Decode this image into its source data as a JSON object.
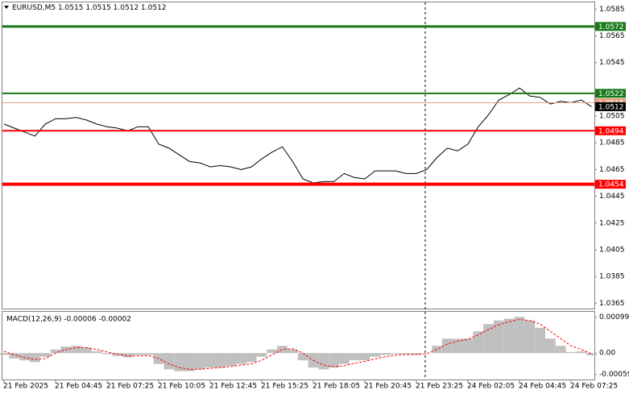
{
  "chart_data": [
    {
      "type": "line",
      "title": "EURUSD,M5  1.0515 1.0515 1.0512 1.0512",
      "color": "#000000",
      "categories": [
        "21 Feb 2025",
        null,
        null,
        null,
        null,
        "21 Feb 04:45",
        null,
        null,
        null,
        null,
        "21 Feb 07:25",
        null,
        null,
        null,
        null,
        "21 Feb 10:05",
        null,
        null,
        null,
        null,
        "21 Feb 12:45",
        null,
        null,
        null,
        null,
        "21 Feb 15:25",
        null,
        null,
        null,
        null,
        "21 Feb 18:05",
        null,
        null,
        null,
        null,
        "21 Feb 20:45",
        null,
        null,
        null,
        null,
        "21 Feb 23:25",
        null,
        null,
        null,
        null,
        "24 Feb 02:05",
        null,
        null,
        null,
        null,
        "24 Feb 04:45",
        null,
        null,
        null,
        null,
        "24 Feb 07:25",
        null,
        null
      ],
      "values": [
        1.0499,
        1.0496,
        1.0493,
        1.049,
        1.0499,
        1.0503,
        1.0503,
        1.0504,
        1.0502,
        1.0499,
        1.0497,
        1.0496,
        1.0494,
        1.0497,
        1.0497,
        1.0484,
        1.0481,
        1.0476,
        1.0471,
        1.047,
        1.0467,
        1.0468,
        1.0467,
        1.0465,
        1.0467,
        1.0473,
        1.0478,
        1.0482,
        1.0471,
        1.0458,
        1.0455,
        1.0456,
        1.0456,
        1.0462,
        1.0459,
        1.0458,
        1.0464,
        1.0464,
        1.0464,
        1.0462,
        1.0462,
        1.0465,
        1.0474,
        1.0481,
        1.0479,
        1.0484,
        1.0497,
        1.0506,
        1.0517,
        1.0521,
        1.0526,
        1.052,
        1.0519,
        1.0514,
        1.0516,
        1.0515,
        1.0517,
        1.0512
      ],
      "ylim": [
        1.0361,
        1.059
      ],
      "yticks": [
        1.0585,
        1.0565,
        1.0545,
        1.0505,
        1.0485,
        1.0465,
        1.0445,
        1.0425,
        1.0405,
        1.0385,
        1.0365
      ],
      "levels": [
        {
          "value": 1.0515,
          "color": "#e8a080",
          "line_width": 1
        },
        {
          "value": 1.0572,
          "color": "#1a7a1a",
          "line_width": 3
        },
        {
          "value": 1.0522,
          "color": "#1a7a1a",
          "line_width": 2
        },
        {
          "value": 1.0494,
          "color": "#ff0000",
          "line_width": 2
        },
        {
          "value": 1.0454,
          "color": "#ff0000",
          "line_width": 4
        }
      ]
    },
    {
      "type": "macd",
      "title": "MACD(12,26,9) -0.00006 -0.00002",
      "ylim": [
        -0.00073,
        0.00114
      ],
      "yticks": [
        0.00099,
        {
          "value": 0,
          "label": "0.00"
        },
        -0.00059
      ],
      "series": [
        {
          "type": "bar",
          "color": "#c0c0c0",
          "values": [
            -5e-05,
            -0.00015,
            -0.0002,
            -0.00025,
            -0.0001,
            0.0001,
            0.00018,
            0.0002,
            0.00015,
            5e-05,
            -3e-05,
            -8e-05,
            -0.00012,
            -5e-05,
            -5e-05,
            -0.0003,
            -0.00045,
            -0.0005,
            -0.0005,
            -0.00045,
            -0.0004,
            -0.0004,
            -0.00035,
            -0.0003,
            -0.00025,
            -0.0001,
            0.0001,
            0.0002,
            0.0001,
            -0.0002,
            -0.0004,
            -0.00045,
            -0.0004,
            -0.0003,
            -0.0002,
            -0.0002,
            -0.0001,
            -5e-05,
            -3e-05,
            -3e-05,
            -5e-05,
            0,
            0.0002,
            0.0004,
            0.0004,
            0.0004,
            0.0006,
            0.0008,
            0.0009,
            0.00095,
            0.001,
            0.0009,
            0.0007,
            0.0004,
            0.0002,
            3e-05,
            5e-05,
            -6e-05
          ]
        },
        {
          "type": "line",
          "color": "#ff0000",
          "style": "dashed",
          "values": [
            5e-05,
            -5e-05,
            -0.00012,
            -0.00018,
            -0.00015,
            0,
            0.0001,
            0.00015,
            0.00015,
            0.0001,
            3e-05,
            -3e-05,
            -8e-05,
            -8e-05,
            -7e-05,
            -0.00015,
            -0.0003,
            -0.0004,
            -0.00045,
            -0.00045,
            -0.00042,
            -0.0004,
            -0.00037,
            -0.00033,
            -0.0003,
            -0.0002,
            -5e-05,
            0.0001,
            0.00012,
            0,
            -0.0002,
            -0.00033,
            -0.00038,
            -0.00035,
            -0.00028,
            -0.00023,
            -0.00016,
            -0.0001,
            -6e-05,
            -4e-05,
            -4e-05,
            -2e-05,
            0.0001,
            0.00025,
            0.00033,
            0.00038,
            0.0005,
            0.00065,
            0.00078,
            0.00087,
            0.00093,
            0.0009,
            0.0008,
            0.0006,
            0.0004,
            0.0002,
            0.0001,
            -2e-05
          ]
        }
      ]
    }
  ]
}
